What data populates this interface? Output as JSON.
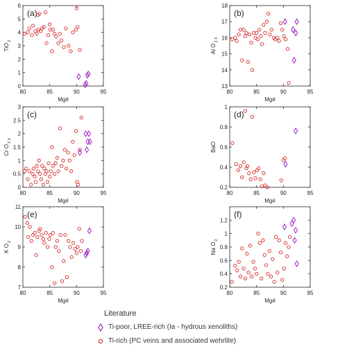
{
  "chart_data": [
    {
      "type": "scatter",
      "panel_label": "(a)",
      "xlabel": "Mg#",
      "ylabel": "TiO",
      "ylabel_sub": "2",
      "xlim": [
        80,
        95
      ],
      "ylim": [
        0,
        6
      ],
      "xticks": [
        80,
        85,
        90,
        95
      ],
      "yticks": [
        0,
        1,
        2,
        3,
        4,
        5,
        6
      ],
      "series": [
        {
          "id": "ti_rich",
          "marker": "circle",
          "color": "#d42a2a",
          "x": [
            80.3,
            80.9,
            81.2,
            81.7,
            81.9,
            82.3,
            82.6,
            82.8,
            82.9,
            83.1,
            83.3,
            83.6,
            83.9,
            84.2,
            84.4,
            84.7,
            85.0,
            85.1,
            85.4,
            85.6,
            85.9,
            86.2,
            86.6,
            86.9,
            87.2,
            87.6,
            88.0,
            88.5,
            88.9,
            89.3,
            89.9,
            90.0,
            90.2,
            90.6
          ],
          "y": [
            3.9,
            4.0,
            4.3,
            3.8,
            4.5,
            4.1,
            3.9,
            5.3,
            4.2,
            5.4,
            4.1,
            4.3,
            4.4,
            5.5,
            3.2,
            3.8,
            4.6,
            4.2,
            2.6,
            4.2,
            3.9,
            3.7,
            3.2,
            3.9,
            3.4,
            2.9,
            4.3,
            3.0,
            2.6,
            4.0,
            4.2,
            5.8,
            4.4,
            2.7
          ]
        },
        {
          "id": "ti_poor",
          "marker": "diamond",
          "color": "#a020c8",
          "x": [
            90.4,
            91.6,
            91.8,
            92.0,
            92.2
          ],
          "y": [
            0.7,
            0.1,
            0.2,
            0.8,
            0.9
          ]
        }
      ]
    },
    {
      "type": "scatter",
      "panel_label": "(b)",
      "xlabel": "Mg#",
      "ylabel": "Al O",
      "ylabel_sub": "2 3",
      "xlim": [
        80,
        95
      ],
      "ylim": [
        13,
        18
      ],
      "xticks": [
        80,
        85,
        90,
        95
      ],
      "yticks": [
        13,
        14,
        15,
        16,
        17,
        18
      ],
      "series": [
        {
          "id": "ti_rich",
          "marker": "circle",
          "color": "#d42a2a",
          "x": [
            80.5,
            81.0,
            81.3,
            81.7,
            82.0,
            82.3,
            82.6,
            82.9,
            83.1,
            83.4,
            83.7,
            84.0,
            84.2,
            84.5,
            84.8,
            85.0,
            85.2,
            85.5,
            85.8,
            86.0,
            86.3,
            86.6,
            86.9,
            87.2,
            87.5,
            87.8,
            88.2,
            88.5,
            88.9,
            89.2,
            89.5,
            89.8,
            90.1,
            90.4,
            90.8,
            91.0
          ],
          "y": [
            15.9,
            16.0,
            15.8,
            16.2,
            16.5,
            14.6,
            16.5,
            16.1,
            16.3,
            14.5,
            16.2,
            15.7,
            14.0,
            16.3,
            16.0,
            16.3,
            15.9,
            16.5,
            16.1,
            15.6,
            16.8,
            16.3,
            17.0,
            17.5,
            16.2,
            16.5,
            16.0,
            15.9,
            16.0,
            15.8,
            16.9,
            16.5,
            16.1,
            15.9,
            15.3,
            13.2
          ]
        },
        {
          "id": "ti_poor",
          "marker": "diamond",
          "color": "#a020c8",
          "x": [
            90.3,
            91.8,
            92.0,
            92.3,
            92.5
          ],
          "y": [
            17.0,
            16.5,
            14.6,
            16.3,
            17.0
          ]
        }
      ]
    },
    {
      "type": "scatter",
      "panel_label": "(c)",
      "xlabel": "Mg#",
      "ylabel": "Cr O",
      "ylabel_sub": "2 3",
      "xlim": [
        80,
        95
      ],
      "ylim": [
        0,
        3
      ],
      "xticks": [
        80,
        85,
        90,
        95
      ],
      "yticks": [
        0,
        0.5,
        1,
        1.5,
        2,
        2.5,
        3
      ],
      "series": [
        {
          "id": "ti_rich",
          "marker": "circle",
          "color": "#d42a2a",
          "x": [
            80.3,
            80.6,
            80.9,
            81.2,
            81.5,
            81.8,
            82.0,
            82.2,
            82.4,
            82.6,
            82.8,
            83.0,
            83.2,
            83.4,
            83.6,
            83.8,
            84.0,
            84.2,
            84.4,
            84.6,
            84.8,
            85.0,
            85.2,
            85.4,
            85.6,
            85.9,
            86.1,
            86.4,
            86.6,
            86.9,
            87.2,
            87.5,
            87.8,
            88.1,
            88.4,
            88.7,
            89.0,
            89.3,
            89.6,
            89.9,
            90.1,
            90.3,
            90.6,
            90.9
          ],
          "y": [
            0.6,
            0.7,
            0.3,
            0.6,
            0.1,
            0.5,
            0.7,
            0.4,
            0.2,
            0.8,
            0.6,
            1.0,
            0.5,
            0.3,
            0.8,
            0.1,
            0.7,
            0.5,
            0.6,
            0.2,
            0.9,
            0.4,
            0.6,
            1.5,
            0.8,
            0.5,
            0.9,
            1.1,
            0.6,
            2.2,
            0.8,
            1.0,
            1.4,
            0.7,
            1.3,
            1.0,
            0.6,
            1.7,
            1.2,
            2.1,
            0.2,
            0.1,
            1.4,
            2.6
          ]
        },
        {
          "id": "ti_poor",
          "marker": "diamond",
          "color": "#a020c8",
          "x": [
            90.6,
            91.7,
            91.9,
            92.1,
            92.3,
            92.5
          ],
          "y": [
            1.3,
            2.0,
            1.4,
            1.7,
            2.0,
            1.7
          ]
        }
      ]
    },
    {
      "type": "scatter",
      "panel_label": "(d)",
      "xlabel": "Mg#",
      "ylabel": "BaO",
      "ylabel_sub": "",
      "xlim": [
        80,
        95
      ],
      "ylim": [
        0.2,
        1.0
      ],
      "xticks": [
        80,
        85,
        90,
        95
      ],
      "yticks": [
        0.2,
        0.4,
        0.6,
        0.8,
        1.0
      ],
      "series": [
        {
          "id": "ti_rich",
          "marker": "circle",
          "color": "#d42a2a",
          "x": [
            80.5,
            81.2,
            81.6,
            82.0,
            82.3,
            82.6,
            82.9,
            83.1,
            83.3,
            83.6,
            83.9,
            84.2,
            84.5,
            84.8,
            85.1,
            85.4,
            85.7,
            86.0,
            86.3,
            86.6,
            87.0,
            89.6,
            90.0,
            90.3
          ],
          "y": [
            0.64,
            0.43,
            0.37,
            0.41,
            0.3,
            0.45,
            0.96,
            0.39,
            0.41,
            0.34,
            0.28,
            0.9,
            0.35,
            0.29,
            0.37,
            0.39,
            0.28,
            0.21,
            0.34,
            0.22,
            0.2,
            0.27,
            0.47,
            0.49
          ]
        },
        {
          "id": "ti_poor",
          "marker": "diamond",
          "color": "#a020c8",
          "x": [
            90.4,
            92.3
          ],
          "y": [
            0.43,
            0.76
          ]
        }
      ]
    },
    {
      "type": "scatter",
      "panel_label": "(e)",
      "xlabel": "Mg#",
      "ylabel": "K O",
      "ylabel_sub": "2",
      "xlim": [
        80,
        95
      ],
      "ylim": [
        7,
        11
      ],
      "xticks": [
        80,
        85,
        90,
        95
      ],
      "yticks": [
        7,
        8,
        9,
        10,
        11
      ],
      "series": [
        {
          "id": "ti_rich",
          "marker": "circle",
          "color": "#d42a2a",
          "x": [
            80.4,
            80.8,
            81.0,
            81.3,
            81.6,
            81.9,
            82.2,
            82.5,
            82.7,
            83.0,
            83.2,
            83.5,
            83.8,
            84.0,
            84.3,
            84.6,
            84.9,
            85.1,
            85.4,
            85.6,
            85.9,
            86.1,
            86.4,
            86.7,
            87.0,
            87.3,
            87.6,
            87.9,
            88.2,
            88.5,
            88.8,
            89.1,
            89.4,
            89.7,
            90.0,
            90.2,
            90.5,
            90.8,
            91.0
          ],
          "y": [
            10.5,
            10.2,
            9.5,
            10.0,
            9.3,
            9.6,
            9.7,
            8.6,
            9.5,
            9.8,
            9.9,
            9.6,
            9.4,
            9.2,
            9.7,
            9.0,
            9.4,
            9.6,
            8.0,
            9.7,
            7.2,
            9.0,
            9.3,
            8.8,
            9.6,
            7.3,
            8.3,
            9.6,
            7.5,
            9.3,
            9.0,
            8.5,
            9.2,
            8.9,
            8.7,
            9.0,
            9.9,
            8.8,
            9.3
          ]
        },
        {
          "id": "ti_poor",
          "marker": "diamond",
          "color": "#a020c8",
          "x": [
            91.7,
            91.9,
            92.1,
            92.4
          ],
          "y": [
            8.6,
            8.7,
            8.8,
            9.8
          ]
        }
      ]
    },
    {
      "type": "scatter",
      "panel_label": "(f)",
      "xlabel": "Mg#",
      "ylabel": "Na O",
      "ylabel_sub": "2",
      "xlim": [
        80,
        95
      ],
      "ylim": [
        0.2,
        1.4
      ],
      "xticks": [
        80,
        85,
        90,
        95
      ],
      "yticks": [
        0.2,
        0.4,
        0.6,
        0.8,
        1.0,
        1.2
      ],
      "series": [
        {
          "id": "ti_rich",
          "marker": "circle",
          "color": "#d42a2a",
          "x": [
            80.4,
            81.0,
            81.4,
            81.7,
            82.0,
            82.3,
            82.6,
            82.9,
            83.2,
            83.5,
            83.8,
            84.1,
            84.4,
            84.7,
            85.0,
            85.3,
            85.6,
            85.9,
            86.2,
            86.5,
            86.8,
            87.1,
            87.4,
            87.7,
            88.0,
            88.3,
            88.6,
            88.9,
            89.2,
            89.5,
            89.8,
            90.1,
            90.4,
            90.7,
            91.0,
            91.2
          ],
          "y": [
            0.28,
            0.52,
            0.45,
            0.58,
            0.36,
            0.78,
            0.48,
            0.33,
            0.7,
            0.42,
            0.82,
            0.36,
            0.58,
            0.48,
            0.4,
            1.0,
            0.86,
            0.33,
            0.9,
            0.68,
            0.53,
            0.4,
            0.74,
            0.36,
            0.62,
            0.28,
            0.95,
            0.42,
            0.9,
            0.72,
            0.31,
            0.48,
            0.86,
            0.66,
            0.8,
            0.95
          ]
        },
        {
          "id": "ti_poor",
          "marker": "diamond",
          "color": "#a020c8",
          "x": [
            90.2,
            91.6,
            91.9,
            92.1,
            92.3,
            92.5
          ],
          "y": [
            1.1,
            1.15,
            1.2,
            0.9,
            1.05,
            0.55
          ]
        }
      ]
    }
  ],
  "legend": {
    "title": "Literature",
    "items": [
      {
        "series": "ti_poor",
        "marker": "diamond",
        "color": "#a020c8",
        "label": "Ti-poor, LREE-rich (Ia - hydrous xenoliths)"
      },
      {
        "series": "ti_rich",
        "marker": "circle",
        "color": "#d42a2a",
        "label": "Ti-rich (PC veins and associated wehrlite)"
      }
    ]
  }
}
